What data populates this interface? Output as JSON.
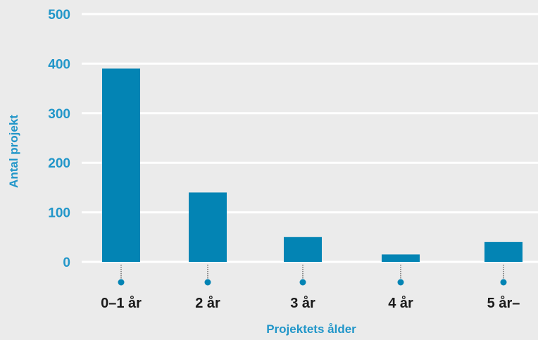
{
  "colors": {
    "bar": "#0384b4",
    "accent": "#2196c9",
    "category_text": "#1a1a1a",
    "gridline": "#ffffff",
    "background": "#ebebeb"
  },
  "chart_data": {
    "type": "bar",
    "title": "",
    "xlabel": "Projektets ålder",
    "ylabel": "Antal projekt",
    "categories": [
      "0–1 år",
      "2 år",
      "3 år",
      "4 år",
      "5 år–"
    ],
    "values": [
      390,
      140,
      50,
      15,
      40
    ],
    "yticks": [
      0,
      100,
      200,
      300,
      400,
      500
    ],
    "ylim": [
      0,
      500
    ],
    "grid": true,
    "legend": "none"
  }
}
